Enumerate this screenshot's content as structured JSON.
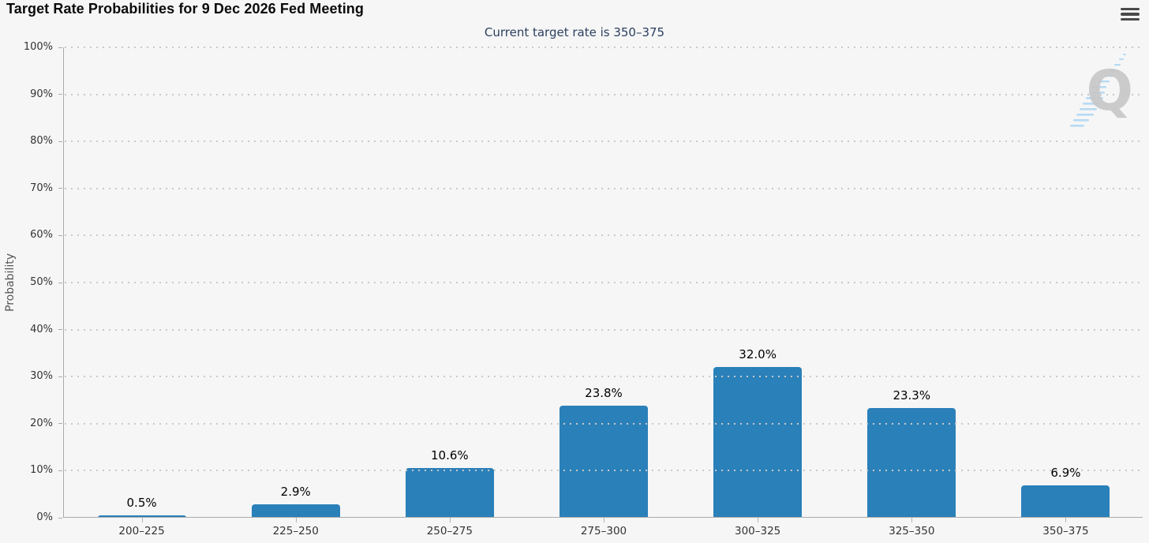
{
  "chart_data": {
    "type": "bar",
    "title": "Target Rate Probabilities for 9 Dec 2026 Fed Meeting",
    "subtitle": "Current target rate is 350–375",
    "xlabel": "",
    "ylabel": "Probability",
    "categories": [
      "200–225",
      "225–250",
      "250–275",
      "275–300",
      "300–325",
      "325–350",
      "350–375"
    ],
    "values": [
      0.5,
      2.9,
      10.6,
      23.8,
      32.0,
      23.3,
      6.9
    ],
    "data_labels": [
      "0.5%",
      "2.9%",
      "10.6%",
      "23.8%",
      "32.0%",
      "23.3%",
      "6.9%"
    ],
    "ylim": [
      0,
      100
    ],
    "ytick_step": 10,
    "ytick_suffix": "%",
    "grid": "horizontal-dotted",
    "legend_position": "none",
    "bar_color": "#2a80b9"
  },
  "toolbar": {
    "menu_icon": "hamburger-icon"
  },
  "watermark": {
    "letter": "Q"
  },
  "colors": {
    "background": "#f6f6f6",
    "bar": "#2a80b9",
    "title_text": "#0b0b0b",
    "subtitle_text": "#2a3f5f",
    "tick_text": "#333333",
    "axis_title_text": "#555555",
    "axis_line": "#ababab",
    "gridline": "#c9c9c9",
    "menu_icon": "#4a4a4a",
    "watermark_letter": "#c7c7c7",
    "watermark_stripes": "#b7daf3"
  }
}
